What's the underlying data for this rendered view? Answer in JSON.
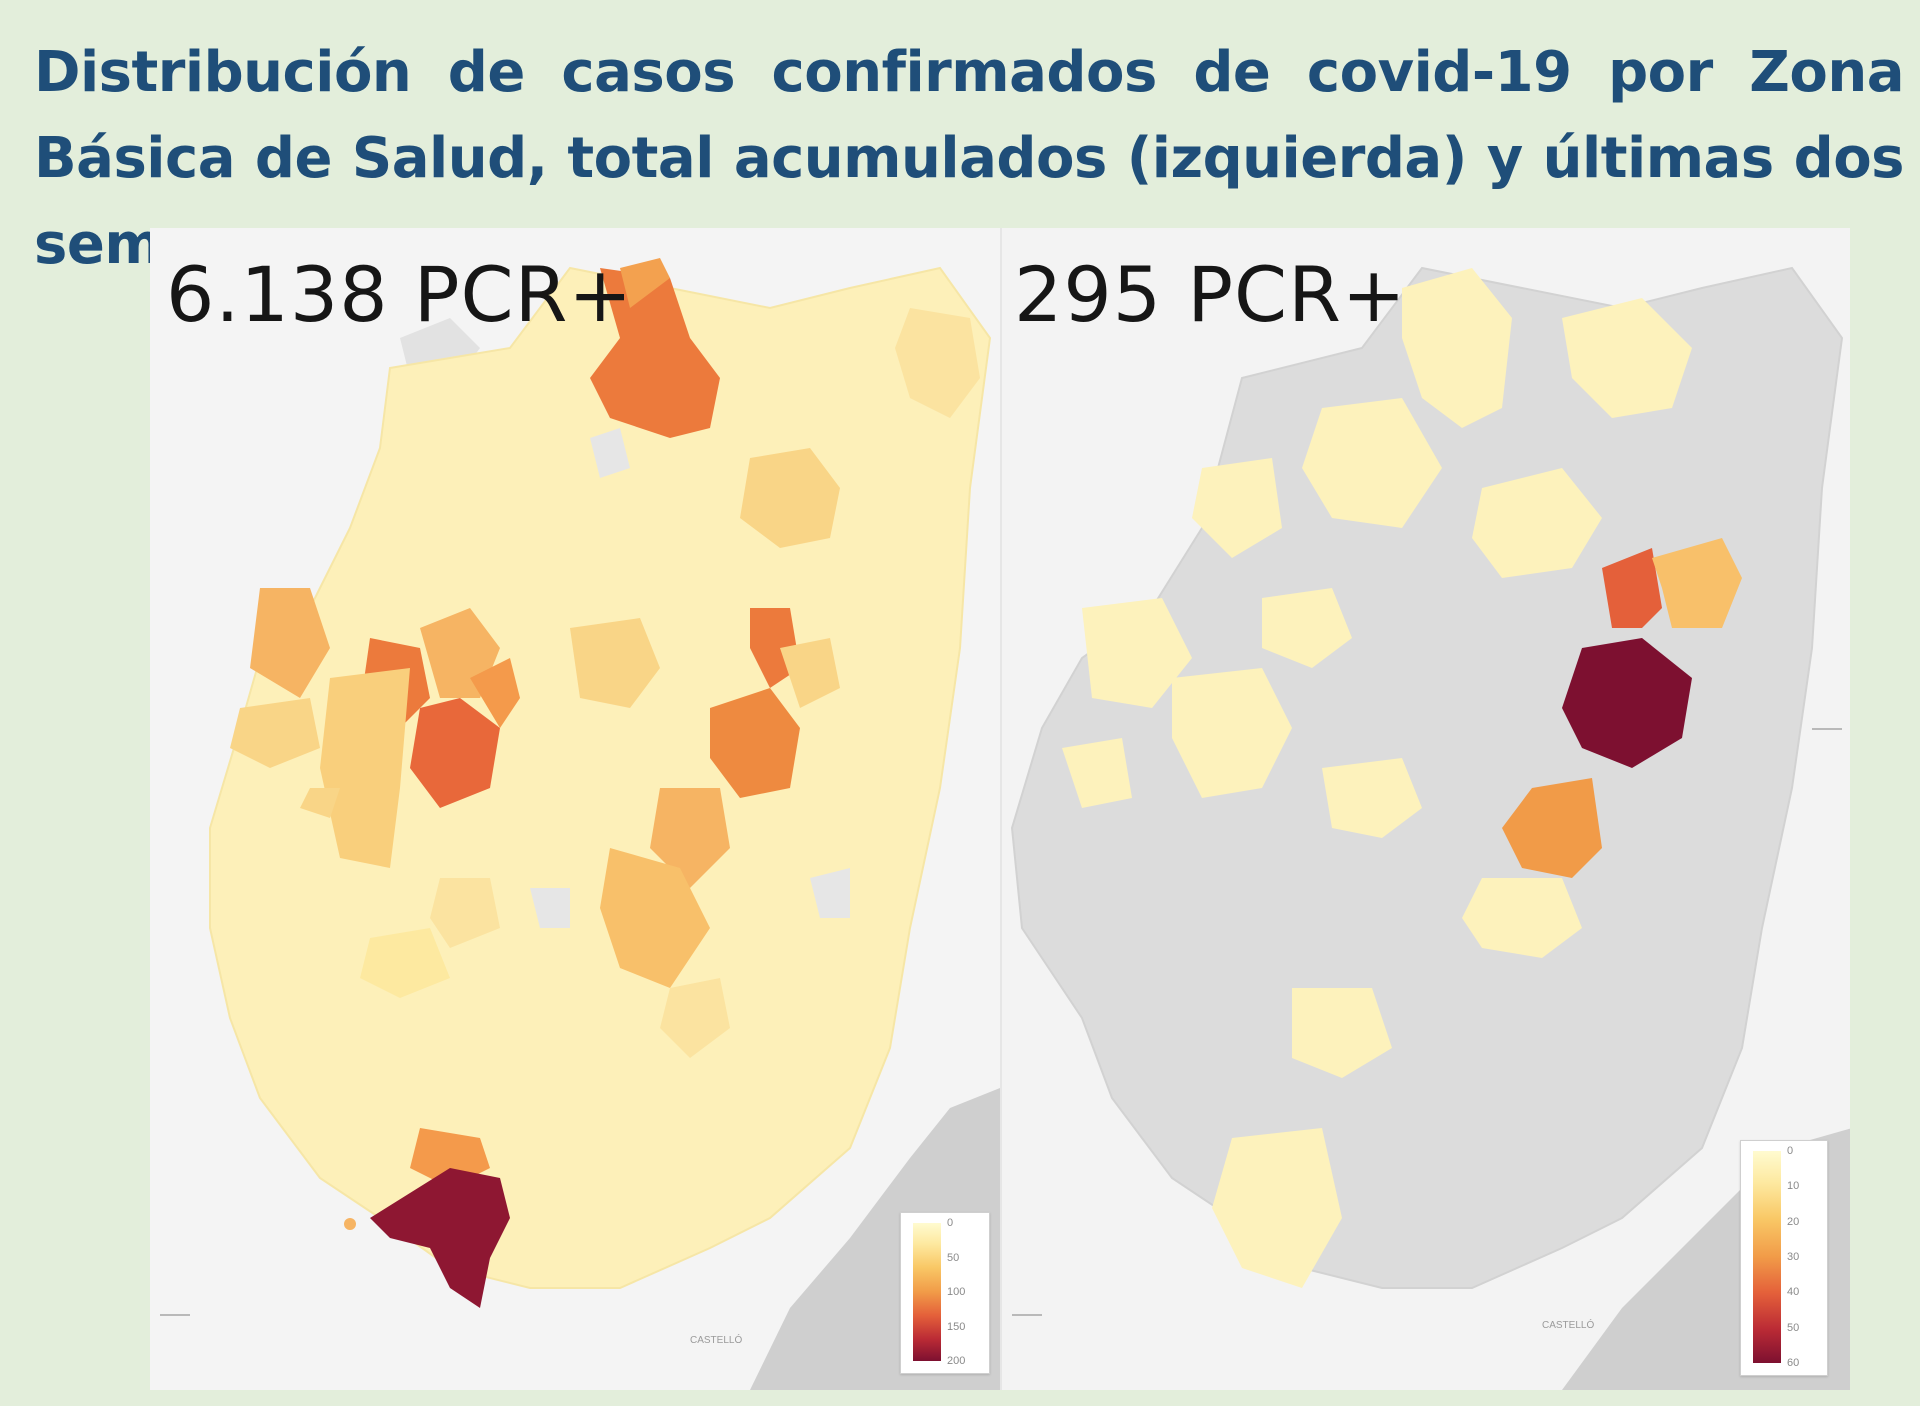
{
  "title": "Distribución de casos confirmados de covid-19 por Zona Básica de Salud, total acumulados (izquierda) y últimas dos semanas.",
  "maps": [
    {
      "id": "total",
      "label": "6.138 PCR+",
      "legend_ticks": [
        "0",
        "50",
        "100",
        "150",
        "200"
      ]
    },
    {
      "id": "recent",
      "label": "295 PCR+",
      "legend_ticks": [
        "0",
        "10",
        "20",
        "30",
        "40",
        "50",
        "60"
      ]
    }
  ],
  "colors": {
    "title": "#1f4e79",
    "background": "#e3eedb",
    "no_data": "#dcdcdc",
    "scale": [
      "#fffbd0",
      "#fde9a0",
      "#f9c866",
      "#f19b48",
      "#e4603a",
      "#bb2b35",
      "#7d1030"
    ]
  }
}
